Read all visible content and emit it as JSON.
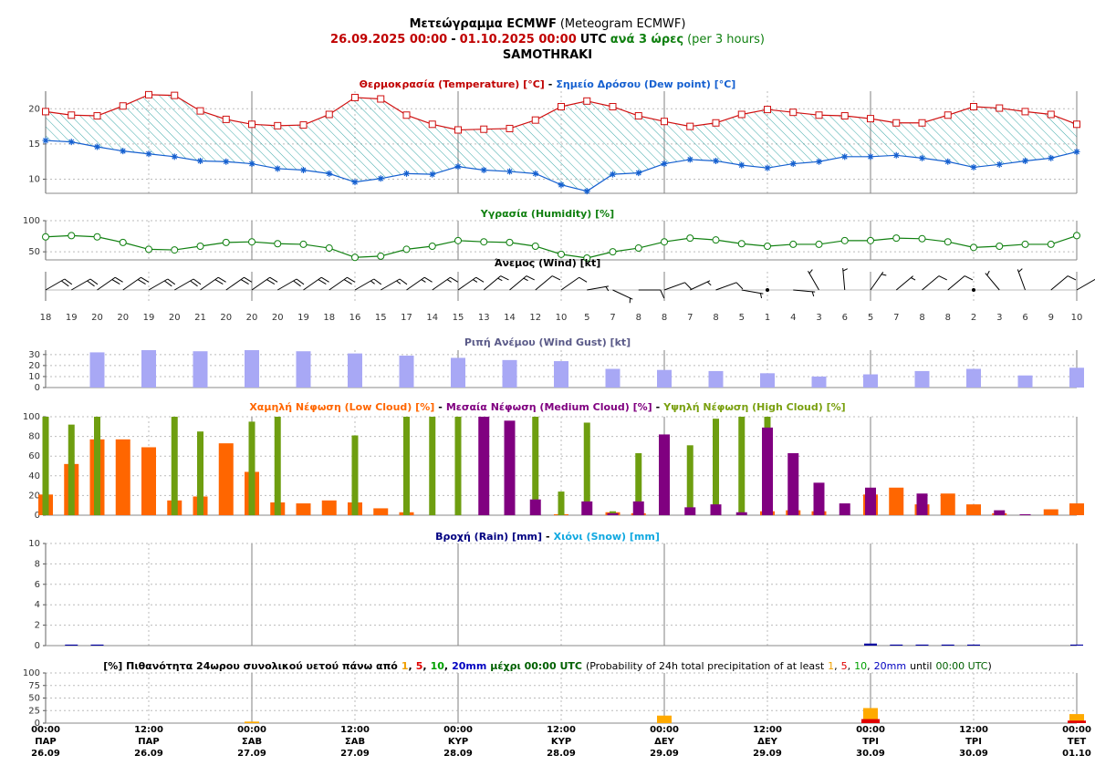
{
  "header": {
    "lines": [
      [
        {
          "text": "Μετεώγραμμα ECMWF",
          "bold": true
        },
        {
          "text": "(Meteogram ECMWF)"
        }
      ],
      [
        {
          "text": "26.09.2025 00:00",
          "color": "#c00000",
          "bold": true
        },
        {
          "text": "-",
          "bold": true
        },
        {
          "text": "01.10.2025 00:00",
          "color": "#c00000",
          "bold": true
        },
        {
          "text": "UTC",
          "bold": true
        },
        {
          "text": "ανά 3 ώρες",
          "color": "#108010",
          "bold": true
        },
        {
          "text": "(per 3 hours)",
          "color": "#108010"
        }
      ],
      [
        {
          "text": "SAMOTHRAKI",
          "bold": true
        }
      ]
    ]
  },
  "time_axis": {
    "labels": [
      {
        "time": "00:00",
        "day": "ΠΑΡ",
        "date": "26.09"
      },
      {
        "time": "12:00",
        "day": "ΠΑΡ",
        "date": "26.09"
      },
      {
        "time": "00:00",
        "day": "ΣΑΒ",
        "date": "27.09"
      },
      {
        "time": "12:00",
        "day": "ΣΑΒ",
        "date": "27.09"
      },
      {
        "time": "00:00",
        "day": "ΚΥΡ",
        "date": "28.09"
      },
      {
        "time": "12:00",
        "day": "ΚΥΡ",
        "date": "28.09"
      },
      {
        "time": "00:00",
        "day": "ΔΕΥ",
        "date": "29.09"
      },
      {
        "time": "12:00",
        "day": "ΔΕΥ",
        "date": "29.09"
      },
      {
        "time": "00:00",
        "day": "ΤΡΙ",
        "date": "30.09"
      },
      {
        "time": "12:00",
        "day": "ΤΡΙ",
        "date": "30.09"
      },
      {
        "time": "00:00",
        "day": "ΤΕΤ",
        "date": "01.10"
      }
    ]
  },
  "chart_data": [
    {
      "type": "line",
      "fill_between": true,
      "hatch_color": "#2aa0a0",
      "title_parts": [
        {
          "text": "Θερμοκρασία (Temperature) [°C]",
          "color": "#c00000",
          "bold": true
        },
        {
          "text": "-",
          "bold": true
        },
        {
          "text": "Σημείο Δρόσου (Dew point) [°C]",
          "color": "#1560d0",
          "bold": true
        }
      ],
      "ylim": [
        8,
        22.5
      ],
      "yticks": [
        10,
        15,
        20
      ],
      "grid": true,
      "series": [
        {
          "name": "Θερμοκρασία (Temperature) [°C]",
          "color": "#d01010",
          "marker": "square",
          "values": [
            19.6,
            19.1,
            19.0,
            20.4,
            22.0,
            21.9,
            19.7,
            18.5,
            17.8,
            17.6,
            17.7,
            19.2,
            21.6,
            21.4,
            19.1,
            17.8,
            17.0,
            17.1,
            17.2,
            18.4,
            20.3,
            21.1,
            20.3,
            19.0,
            18.2,
            17.5,
            18.0,
            19.2,
            19.9,
            19.5,
            19.1,
            19.0,
            18.6,
            18.0,
            18.0,
            19.1,
            20.3,
            20.1,
            19.6,
            19.2,
            17.8
          ]
        },
        {
          "name": "Σημείο Δρόσου (Dew point) [°C]",
          "color": "#1560d0",
          "marker": "star",
          "values": [
            15.5,
            15.3,
            14.6,
            14.0,
            13.6,
            13.2,
            12.6,
            12.5,
            12.2,
            11.5,
            11.3,
            10.8,
            9.6,
            10.1,
            10.8,
            10.7,
            11.8,
            11.3,
            11.1,
            10.8,
            9.2,
            8.3,
            10.7,
            10.9,
            12.2,
            12.8,
            12.6,
            12.0,
            11.6,
            12.2,
            12.5,
            13.2,
            13.2,
            13.4,
            13.0,
            12.5,
            11.7,
            12.1,
            12.6,
            13.0,
            13.9
          ]
        }
      ]
    },
    {
      "type": "line",
      "title_parts": [
        {
          "text": "Υγρασία (Humidity) [%]",
          "color": "#108010",
          "bold": true
        }
      ],
      "ylim": [
        37,
        100
      ],
      "yticks": [
        50,
        100
      ],
      "grid": true,
      "series": [
        {
          "name": "Υγρασία (Humidity) [%]",
          "color": "#108010",
          "marker": "circle",
          "values": [
            74,
            76,
            74,
            65,
            54,
            53,
            59,
            65,
            66,
            63,
            62,
            56,
            41,
            43,
            54,
            59,
            68,
            66,
            65,
            59,
            46,
            40,
            50,
            56,
            66,
            72,
            69,
            63,
            59,
            62,
            62,
            68,
            68,
            72,
            71,
            66,
            57,
            59,
            62,
            62,
            76
          ]
        }
      ]
    },
    {
      "type": "barbs",
      "color": "#000000",
      "title_parts": [
        {
          "text": "Άνεμος (Wind) [kt]",
          "bold": true
        }
      ],
      "speeds": [
        18,
        19,
        20,
        20,
        19,
        20,
        21,
        20,
        20,
        20,
        19,
        18,
        16,
        15,
        17,
        14,
        15,
        13,
        14,
        12,
        10,
        5,
        7,
        8,
        8,
        7,
        8,
        5,
        1,
        4,
        3,
        6,
        5,
        7,
        8,
        8,
        2,
        3,
        6,
        9,
        10
      ],
      "directions": [
        60,
        60,
        55,
        55,
        60,
        60,
        55,
        55,
        55,
        60,
        55,
        55,
        60,
        60,
        55,
        55,
        55,
        50,
        50,
        50,
        55,
        80,
        115,
        90,
        70,
        65,
        70,
        100,
        100,
        95,
        330,
        355,
        35,
        50,
        50,
        50,
        45,
        320,
        340,
        50,
        60
      ]
    },
    {
      "type": "bar",
      "title_parts": [
        {
          "text": "Ριπή Ανέμου (Wind Gust) [kt]",
          "color": "#5a5a88",
          "bold": true
        }
      ],
      "ylim": [
        0,
        34
      ],
      "yticks": [
        0,
        10,
        20,
        30
      ],
      "grid": true,
      "series": [
        {
          "name": "Ριπή Ανέμου (Wind Gust) [kt]",
          "color": "#a8a8f5",
          "values": [
            null,
            null,
            32,
            null,
            34,
            null,
            33,
            null,
            34,
            null,
            33,
            null,
            31,
            null,
            29,
            null,
            27,
            null,
            25,
            null,
            24,
            null,
            17,
            null,
            16,
            null,
            15,
            null,
            13,
            null,
            10,
            null,
            12,
            null,
            15,
            null,
            17,
            null,
            11,
            null,
            18
          ]
        }
      ]
    },
    {
      "type": "bar",
      "title_parts": [
        {
          "text": "Χαμηλή Νέφωση (Low Cloud) [%]",
          "color": "#ff6600",
          "bold": true
        },
        {
          "text": "-",
          "bold": true
        },
        {
          "text": "Μεσαία Νέφωση (Medium Cloud) [%]",
          "color": "#800080",
          "bold": true
        },
        {
          "text": "-",
          "bold": true
        },
        {
          "text": "Υψηλή Νέφωση (High Cloud) [%]",
          "color": "#7aa010",
          "bold": true
        }
      ],
      "ylim": [
        0,
        100
      ],
      "yticks": [
        0,
        20,
        40,
        60,
        80,
        100
      ],
      "grid": true,
      "series": [
        {
          "name": "Χαμηλή Νέφωση (Low Cloud) [%]",
          "color": "#ff6600",
          "values": [
            21,
            52,
            77,
            77,
            69,
            15,
            19,
            73,
            44,
            13,
            12,
            15,
            13,
            7,
            3,
            0,
            0,
            0,
            0,
            0,
            1,
            0,
            3,
            2,
            0,
            0,
            0,
            0,
            4,
            5,
            4,
            0,
            21,
            28,
            11,
            22,
            11,
            2,
            0,
            6,
            12
          ]
        },
        {
          "name": "Υψηλή Νέφωση (High Cloud) [%]",
          "color": "#6e9e10",
          "values": [
            100,
            92,
            100,
            0,
            0,
            100,
            85,
            0,
            95,
            100,
            0,
            0,
            81,
            0,
            100,
            100,
            100,
            0,
            0,
            100,
            24,
            94,
            4,
            63,
            0,
            71,
            98,
            100,
            100,
            0,
            0,
            0,
            0,
            0,
            0,
            0,
            0,
            0,
            0,
            0,
            0
          ]
        },
        {
          "name": "Μεσαία Νέφωση (Medium Cloud) [%]",
          "color": "#800080",
          "values": [
            0,
            0,
            0,
            0,
            0,
            0,
            0,
            0,
            0,
            0,
            0,
            0,
            0,
            0,
            0,
            0,
            0,
            100,
            96,
            16,
            0,
            14,
            2,
            14,
            82,
            8,
            11,
            3,
            89,
            63,
            33,
            12,
            28,
            0,
            22,
            0,
            0,
            5,
            1,
            0,
            0
          ]
        }
      ]
    },
    {
      "type": "bar",
      "title_parts": [
        {
          "text": "Βροχή (Rain) [mm]",
          "color": "#000080",
          "bold": true
        },
        {
          "text": "-",
          "bold": true
        },
        {
          "text": "Χιόνι (Snow) [mm]",
          "color": "#10a8e0",
          "bold": true
        }
      ],
      "ylim": [
        0,
        10
      ],
      "yticks": [
        0,
        2,
        4,
        6,
        8,
        10
      ],
      "grid": true,
      "series": [
        {
          "name": "Βροχή (Rain) [mm]",
          "color": "#0000a0",
          "values": [
            0,
            0.1,
            0.1,
            0,
            0,
            0,
            0,
            0,
            0,
            0,
            0,
            0,
            0,
            0,
            0,
            0,
            0,
            0,
            0,
            0,
            0,
            0,
            0,
            0,
            0,
            0,
            0,
            0,
            0,
            0,
            0,
            0,
            0.2,
            0.1,
            0.1,
            0.1,
            0.1,
            0,
            0,
            0,
            0.1
          ]
        }
      ]
    },
    {
      "type": "daily_bar",
      "title_parts": [
        {
          "text": "[%] Πιθανότητα 24ωρου συνολικού υετού πάνω από",
          "bold": true
        },
        {
          "text": "1",
          "color": "#f0a000",
          "bold": true
        },
        {
          "text": ",",
          "bold": true
        },
        {
          "text": "5",
          "color": "#e00000",
          "bold": true
        },
        {
          "text": ",",
          "bold": true
        },
        {
          "text": "10",
          "color": "#00a000",
          "bold": true
        },
        {
          "text": ",",
          "bold": true
        },
        {
          "text": "20mm",
          "color": "#0000c0",
          "bold": true
        },
        {
          "text": "μέχρι 00:00 UTC",
          "color": "#006000",
          "bold": true
        },
        {
          "text": "(Probability of 24h total precipitation of at least"
        },
        {
          "text": "1",
          "color": "#f0a000"
        },
        {
          "text": ","
        },
        {
          "text": "5",
          "color": "#e00000"
        },
        {
          "text": ","
        },
        {
          "text": "10",
          "color": "#00a000"
        },
        {
          "text": ","
        },
        {
          "text": "20mm",
          "color": "#0000c0"
        },
        {
          "text": "until"
        },
        {
          "text": "00:00 UTC",
          "color": "#006000"
        },
        {
          "text": ")"
        }
      ],
      "ylim": [
        0,
        100
      ],
      "yticks": [
        0,
        25,
        50,
        75,
        100
      ],
      "grid": true,
      "series": [
        {
          "name": "1",
          "color": "#ffaa00",
          "values": [
            0,
            3,
            0,
            15,
            30,
            18
          ]
        },
        {
          "name": "5",
          "color": "#e00000",
          "values": [
            0,
            0,
            0,
            0,
            8,
            5
          ]
        },
        {
          "name": "10",
          "color": "#00a000",
          "values": [
            0,
            0,
            0,
            0,
            0,
            0
          ]
        },
        {
          "name": "20mm",
          "color": "#0000c0",
          "values": [
            0,
            0,
            0,
            0,
            0,
            0
          ]
        }
      ]
    }
  ]
}
